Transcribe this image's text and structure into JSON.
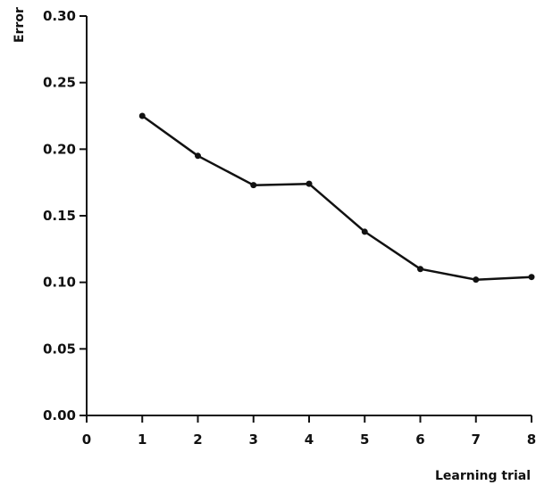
{
  "chart_data": {
    "type": "line",
    "xlabel": "Learning trial",
    "ylabel": "Error",
    "xlim": [
      0,
      8
    ],
    "ylim": [
      0,
      0.3
    ],
    "x_ticks": [
      0,
      1,
      2,
      3,
      4,
      5,
      6,
      7,
      8
    ],
    "y_ticks": [
      0.0,
      0.05,
      0.1,
      0.15,
      0.2,
      0.25,
      0.3
    ],
    "x_tick_labels": [
      "0",
      "1",
      "2",
      "3",
      "4",
      "5",
      "6",
      "7",
      "8"
    ],
    "y_tick_labels": [
      "0.00",
      "0.05",
      "0.10",
      "0.15",
      "0.20",
      "0.25",
      "0.30"
    ],
    "grid": false,
    "series": [
      {
        "x": [
          1,
          2,
          3,
          4,
          5,
          6,
          7,
          8
        ],
        "values": [
          0.225,
          0.195,
          0.173,
          0.174,
          0.138,
          0.11,
          0.102,
          0.104
        ]
      }
    ],
    "colors": {
      "line": "#111111",
      "axis": "#111111"
    }
  }
}
